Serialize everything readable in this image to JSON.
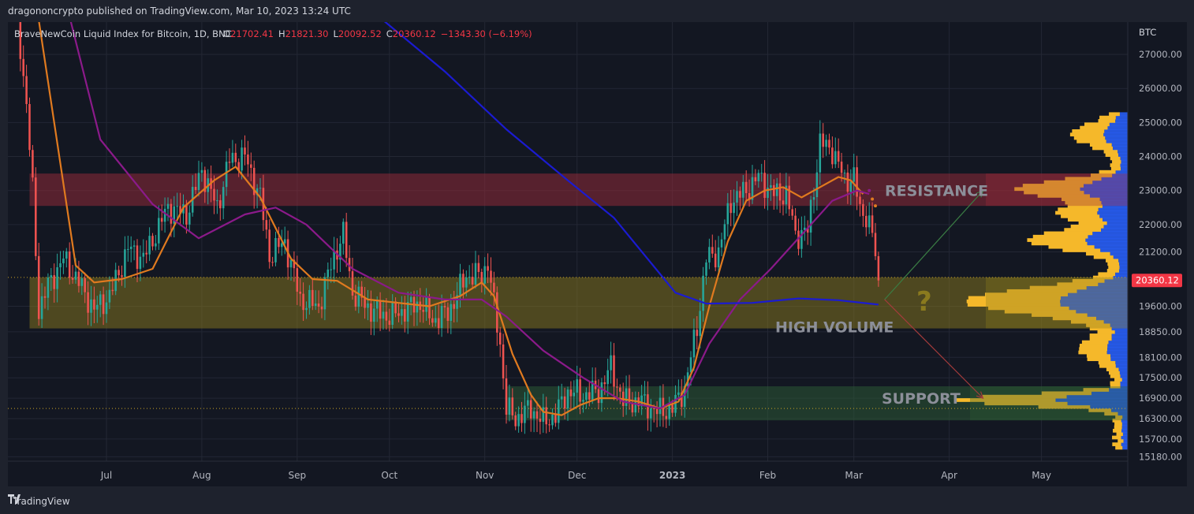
{
  "header": {
    "published_text": "dragononcrypto published on TradingView.com, Mar 10, 2023 13:24 UTC"
  },
  "footer": {
    "brand_logo": "tradingview-logo-icon",
    "brand_label": "TradingView"
  },
  "chart_data": {
    "type": "candlestick",
    "title": "BraveNewCoin Liquid Index for Bitcoin, 1D, BNC",
    "ohlc": {
      "o_label": "O",
      "o_value": "21702.41",
      "h_label": "H",
      "h_value": "21821.30",
      "l_label": "L",
      "l_value": "20092.52",
      "c_label": "C",
      "c_value": "20360.12",
      "change": "−1343.30 (−6.19%)"
    },
    "currency_label": "BTC",
    "current_price_label": "20360.12",
    "ylim": [
      15050,
      27950
    ],
    "y_ticks": [
      {
        "value": 27000,
        "label": "27000.00"
      },
      {
        "value": 26000,
        "label": "26000.00"
      },
      {
        "value": 25000,
        "label": "25000.00"
      },
      {
        "value": 24000,
        "label": "24000.00"
      },
      {
        "value": 23000,
        "label": "23000.00"
      },
      {
        "value": 22000,
        "label": "22000.00"
      },
      {
        "value": 21200,
        "label": "21200.00"
      },
      {
        "value": 19600,
        "label": "19600.00"
      },
      {
        "value": 18850,
        "label": "18850.00"
      },
      {
        "value": 18100,
        "label": "18100.00"
      },
      {
        "value": 17500,
        "label": "17500.00"
      },
      {
        "value": 16900,
        "label": "16900.00"
      },
      {
        "value": 16300,
        "label": "16300.00"
      },
      {
        "value": 15700,
        "label": "15700.00"
      },
      {
        "value": 15180,
        "label": "15180.00"
      }
    ],
    "x_ticks": [
      {
        "day": 30,
        "label": "Jul",
        "bold": false
      },
      {
        "day": 61,
        "label": "Aug",
        "bold": false
      },
      {
        "day": 92,
        "label": "Sep",
        "bold": false
      },
      {
        "day": 122,
        "label": "Oct",
        "bold": false
      },
      {
        "day": 153,
        "label": "Nov",
        "bold": false
      },
      {
        "day": 183,
        "label": "Dec",
        "bold": false
      },
      {
        "day": 214,
        "label": "2023",
        "bold": true
      },
      {
        "day": 245,
        "label": "Feb",
        "bold": false
      },
      {
        "day": 273,
        "label": "Mar",
        "bold": false
      },
      {
        "day": 304,
        "label": "Apr",
        "bold": false
      },
      {
        "day": 334,
        "label": "May",
        "bold": false
      }
    ],
    "xlim": [
      0,
      360
    ],
    "zones": [
      {
        "name": "resistance",
        "label": "RESISTANCE",
        "from": 22550,
        "to": 23500,
        "start_day": 5,
        "color": "#9b2c3a",
        "label_color": "#8c8f99",
        "label_price": 23000
      },
      {
        "name": "high-volume",
        "label": "HIGH VOLUME",
        "from": 18950,
        "to": 20450,
        "start_day": 5,
        "color": "#8a7a1e",
        "label_color": "#8c8f99",
        "label_price": 19000
      },
      {
        "name": "support",
        "label": "SUPPORT",
        "from": 16250,
        "to": 17250,
        "start_day": 160,
        "color": "#2e5e35",
        "label_color": "#8c8f99",
        "label_price": 16900
      }
    ],
    "question_label": "?",
    "dotted_lines": [
      {
        "price": 20450,
        "color": "#c9a227"
      },
      {
        "price": 16600,
        "color": "#c9a227"
      }
    ],
    "anchors": [
      {
        "day": 0,
        "price": 29000
      },
      {
        "day": 4,
        "price": 25500
      },
      {
        "day": 6,
        "price": 23000
      },
      {
        "day": 8,
        "price": 19500
      },
      {
        "day": 11,
        "price": 20200
      },
      {
        "day": 16,
        "price": 21000
      },
      {
        "day": 21,
        "price": 20300
      },
      {
        "day": 26,
        "price": 19500
      },
      {
        "day": 31,
        "price": 19900
      },
      {
        "day": 37,
        "price": 21300
      },
      {
        "day": 42,
        "price": 21000
      },
      {
        "day": 50,
        "price": 22500
      },
      {
        "day": 56,
        "price": 22300
      },
      {
        "day": 61,
        "price": 23600
      },
      {
        "day": 66,
        "price": 22500
      },
      {
        "day": 70,
        "price": 23900
      },
      {
        "day": 75,
        "price": 24000
      },
      {
        "day": 80,
        "price": 22800
      },
      {
        "day": 83,
        "price": 21100
      },
      {
        "day": 88,
        "price": 21500
      },
      {
        "day": 93,
        "price": 19800
      },
      {
        "day": 99,
        "price": 19600
      },
      {
        "day": 104,
        "price": 21100
      },
      {
        "day": 107,
        "price": 21700
      },
      {
        "day": 110,
        "price": 20000
      },
      {
        "day": 116,
        "price": 19500
      },
      {
        "day": 122,
        "price": 19300
      },
      {
        "day": 127,
        "price": 19500
      },
      {
        "day": 132,
        "price": 19700
      },
      {
        "day": 136,
        "price": 19200
      },
      {
        "day": 141,
        "price": 19400
      },
      {
        "day": 147,
        "price": 20500
      },
      {
        "day": 152,
        "price": 20500
      },
      {
        "day": 154,
        "price": 20900
      },
      {
        "day": 155,
        "price": 20200
      },
      {
        "day": 158,
        "price": 18500
      },
      {
        "day": 160,
        "price": 16600
      },
      {
        "day": 163,
        "price": 16300
      },
      {
        "day": 168,
        "price": 16600
      },
      {
        "day": 172,
        "price": 16200
      },
      {
        "day": 176,
        "price": 16400
      },
      {
        "day": 180,
        "price": 17100
      },
      {
        "day": 185,
        "price": 17000
      },
      {
        "day": 190,
        "price": 17100
      },
      {
        "day": 194,
        "price": 17800
      },
      {
        "day": 198,
        "price": 16800
      },
      {
        "day": 204,
        "price": 16800
      },
      {
        "day": 209,
        "price": 16500
      },
      {
        "day": 214,
        "price": 16600
      },
      {
        "day": 218,
        "price": 17200
      },
      {
        "day": 222,
        "price": 19000
      },
      {
        "day": 225,
        "price": 21000
      },
      {
        "day": 229,
        "price": 21200
      },
      {
        "day": 233,
        "price": 22700
      },
      {
        "day": 238,
        "price": 23000
      },
      {
        "day": 242,
        "price": 23400
      },
      {
        "day": 247,
        "price": 22900
      },
      {
        "day": 251,
        "price": 22900
      },
      {
        "day": 254,
        "price": 21700
      },
      {
        "day": 258,
        "price": 21800
      },
      {
        "day": 262,
        "price": 24400
      },
      {
        "day": 266,
        "price": 24200
      },
      {
        "day": 270,
        "price": 23300
      },
      {
        "day": 273,
        "price": 23400
      },
      {
        "day": 275,
        "price": 22400
      },
      {
        "day": 277,
        "price": 22300
      },
      {
        "day": 279,
        "price": 21700
      },
      {
        "day": 281,
        "price": 20400
      }
    ],
    "moving_averages": [
      {
        "name": "ma-fast",
        "color": "#e07a1f",
        "points": [
          [
            3,
            31000
          ],
          [
            20,
            20800
          ],
          [
            26,
            20300
          ],
          [
            35,
            20400
          ],
          [
            45,
            20700
          ],
          [
            55,
            22500
          ],
          [
            65,
            23300
          ],
          [
            72,
            23700
          ],
          [
            80,
            22800
          ],
          [
            90,
            21000
          ],
          [
            97,
            20400
          ],
          [
            105,
            20350
          ],
          [
            115,
            19800
          ],
          [
            125,
            19700
          ],
          [
            135,
            19600
          ],
          [
            145,
            19900
          ],
          [
            152,
            20300
          ],
          [
            156,
            19900
          ],
          [
            162,
            18200
          ],
          [
            168,
            17000
          ],
          [
            172,
            16500
          ],
          [
            178,
            16400
          ],
          [
            184,
            16700
          ],
          [
            190,
            16900
          ],
          [
            196,
            16900
          ],
          [
            203,
            16800
          ],
          [
            210,
            16600
          ],
          [
            216,
            16800
          ],
          [
            221,
            17800
          ],
          [
            226,
            19600
          ],
          [
            232,
            21500
          ],
          [
            238,
            22700
          ],
          [
            244,
            23000
          ],
          [
            250,
            23100
          ],
          [
            256,
            22800
          ],
          [
            262,
            23100
          ],
          [
            268,
            23400
          ],
          [
            272,
            23300
          ],
          [
            276,
            22900
          ]
        ]
      },
      {
        "name": "ma-mid",
        "color": "#8b1a8a",
        "points": [
          [
            10,
            31000
          ],
          [
            28,
            24500
          ],
          [
            45,
            22600
          ],
          [
            60,
            21600
          ],
          [
            75,
            22300
          ],
          [
            85,
            22500
          ],
          [
            95,
            22000
          ],
          [
            110,
            20700
          ],
          [
            125,
            20000
          ],
          [
            140,
            19800
          ],
          [
            152,
            19800
          ],
          [
            160,
            19300
          ],
          [
            172,
            18300
          ],
          [
            185,
            17500
          ],
          [
            198,
            16800
          ],
          [
            210,
            16600
          ],
          [
            218,
            17000
          ],
          [
            226,
            18500
          ],
          [
            236,
            19800
          ],
          [
            246,
            20700
          ],
          [
            256,
            21700
          ],
          [
            266,
            22700
          ],
          [
            274,
            23000
          ],
          [
            278,
            22900
          ]
        ]
      },
      {
        "name": "ma-slow",
        "color": "#1b1bd1",
        "points": [
          [
            120,
            28000
          ],
          [
            140,
            26500
          ],
          [
            160,
            24800
          ],
          [
            180,
            23300
          ],
          [
            195,
            22200
          ],
          [
            205,
            21100
          ],
          [
            215,
            20000
          ],
          [
            225,
            19680
          ],
          [
            240,
            19700
          ],
          [
            255,
            19830
          ],
          [
            268,
            19780
          ],
          [
            281,
            19650
          ]
        ]
      }
    ],
    "arrows": [
      {
        "name": "arrow-up",
        "color": "#3a7d44",
        "from": [
          283,
          19800
        ],
        "to": [
          315,
          23000
        ]
      },
      {
        "name": "arrow-down",
        "color": "#a33b3b",
        "from": [
          283,
          19800
        ],
        "to": [
          315,
          16900
        ]
      }
    ],
    "volume_profile": {
      "price_min": 15400,
      "price_max": 25300,
      "bin_size": 100
    }
  }
}
